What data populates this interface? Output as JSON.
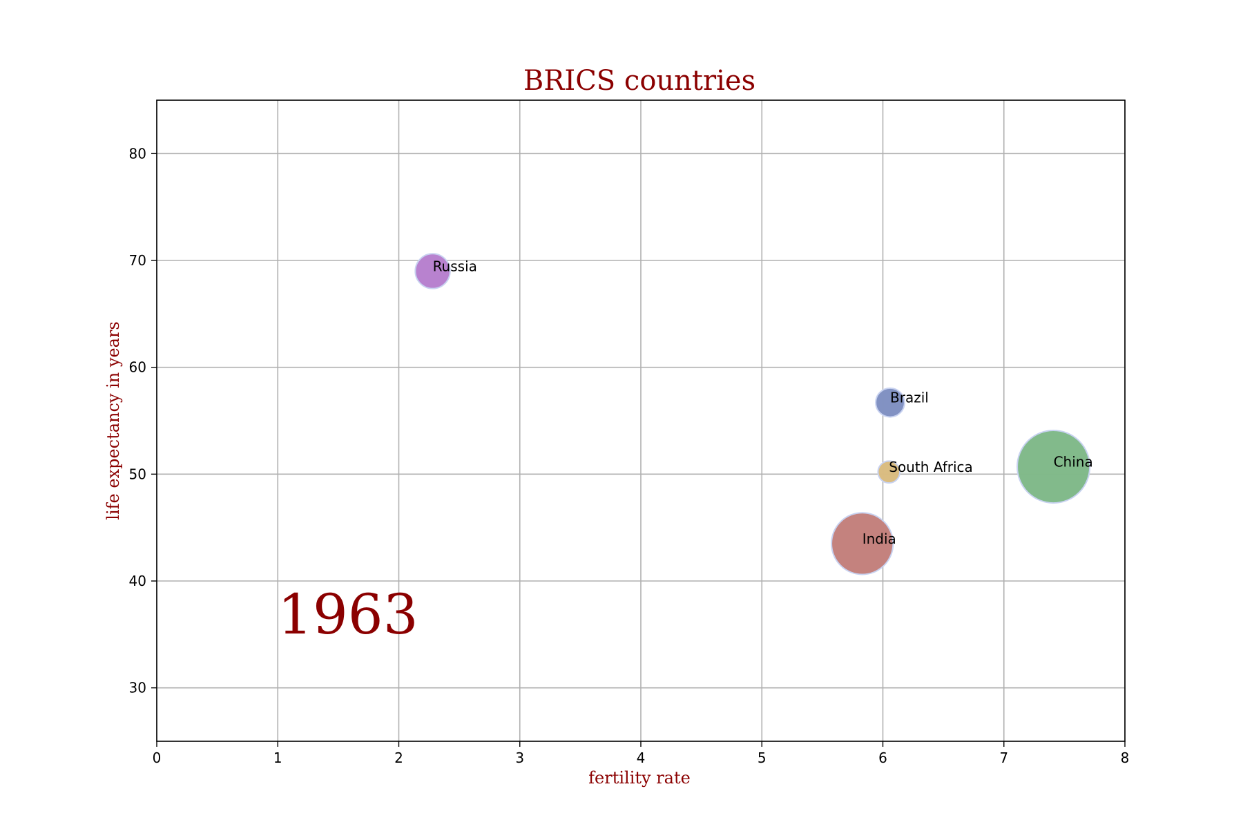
{
  "colors": {
    "title": "#8b0000",
    "grid": "#b0b0b0",
    "axis": "#000000",
    "bubble_edge": "#c8d2f0"
  },
  "chart_data": {
    "type": "scatter",
    "title": "BRICS countries",
    "xlabel": "fertility rate",
    "ylabel": "life expectancy in years",
    "annotation": "1963",
    "xlim": [
      0,
      8
    ],
    "ylim": [
      25,
      85
    ],
    "xticks": [
      0,
      1,
      2,
      3,
      4,
      5,
      6,
      7,
      8
    ],
    "yticks": [
      30,
      40,
      50,
      60,
      70,
      80
    ],
    "grid": true,
    "points": [
      {
        "label": "Russia",
        "x": 2.28,
        "y": 69.0,
        "size": 0.35,
        "color": "#b77fce"
      },
      {
        "label": "Brazil",
        "x": 6.06,
        "y": 56.7,
        "size": 0.29,
        "color": "#7f90c2"
      },
      {
        "label": "South Africa",
        "x": 6.05,
        "y": 50.2,
        "size": 0.22,
        "color": "#d9bc80"
      },
      {
        "label": "China",
        "x": 7.41,
        "y": 50.7,
        "size": 0.73,
        "color": "#80b989"
      },
      {
        "label": "India",
        "x": 5.83,
        "y": 43.5,
        "size": 0.62,
        "color": "#c37f7b"
      }
    ]
  }
}
